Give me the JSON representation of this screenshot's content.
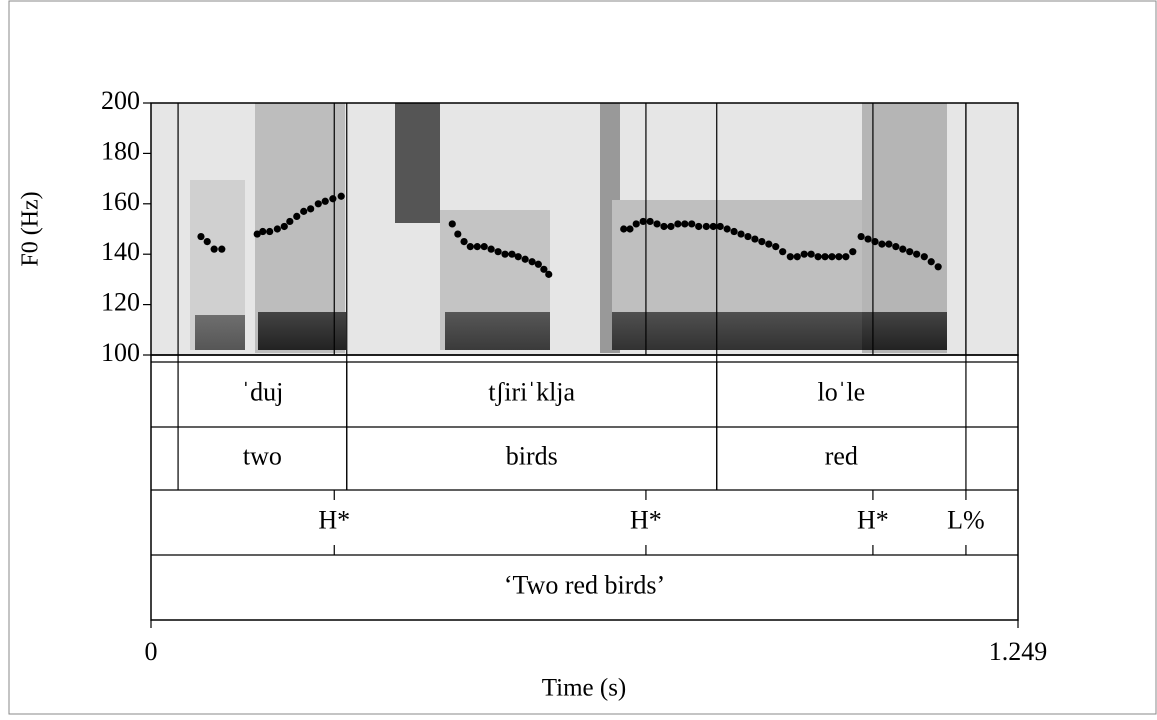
{
  "chart_data": {
    "type": "scatter",
    "y_label": "F0 (Hz)",
    "x_label": "Time (s)",
    "xlim": [
      0,
      1.249
    ],
    "xticks": [
      0,
      1.249
    ],
    "ylim": [
      100,
      200
    ],
    "yticks": [
      100,
      120,
      140,
      160,
      180,
      200
    ],
    "color": "#000000",
    "x": [
      0.072,
      0.081,
      0.091,
      0.102,
      0.153,
      0.161,
      0.171,
      0.182,
      0.192,
      0.2,
      0.21,
      0.22,
      0.23,
      0.241,
      0.251,
      0.262,
      0.274,
      0.434,
      0.442,
      0.451,
      0.46,
      0.47,
      0.48,
      0.49,
      0.5,
      0.51,
      0.52,
      0.529,
      0.539,
      0.549,
      0.558,
      0.566,
      0.573,
      0.681,
      0.69,
      0.699,
      0.709,
      0.719,
      0.729,
      0.739,
      0.749,
      0.759,
      0.769,
      0.779,
      0.789,
      0.8,
      0.81,
      0.82,
      0.83,
      0.84,
      0.85,
      0.86,
      0.87,
      0.88,
      0.89,
      0.9,
      0.91,
      0.921,
      0.931,
      0.941,
      0.951,
      0.961,
      0.971,
      0.981,
      0.991,
      1.001,
      1.011,
      1.023,
      1.033,
      1.043,
      1.053,
      1.063,
      1.073,
      1.083,
      1.093,
      1.103,
      1.114,
      1.124,
      1.134
    ],
    "values": [
      147,
      145,
      142,
      142,
      148,
      149,
      149,
      150,
      151,
      153,
      155,
      157,
      158,
      160,
      161,
      162,
      163,
      152,
      148,
      145,
      143,
      143,
      143,
      142,
      141,
      140,
      140,
      139,
      138,
      137,
      136,
      134,
      132,
      150,
      150,
      152,
      153,
      153,
      152,
      151,
      151,
      152,
      152,
      152,
      151,
      151,
      151,
      151,
      150,
      149,
      148,
      147,
      146,
      145,
      144,
      143,
      141,
      139,
      139,
      140,
      140,
      139,
      139,
      139,
      139,
      139,
      141,
      147,
      146,
      145,
      144,
      144,
      143,
      142,
      141,
      140,
      139,
      137,
      135
    ],
    "tiers": [
      {
        "intervals": [
          {
            "start": 0.039,
            "end": 0.282,
            "label": "ˈduj"
          },
          {
            "start": 0.282,
            "end": 0.815,
            "label": "tʃiriˈklja"
          },
          {
            "start": 0.815,
            "end": 1.174,
            "label": "loˈle"
          }
        ]
      },
      {
        "intervals": [
          {
            "start": 0.039,
            "end": 0.282,
            "label": "two"
          },
          {
            "start": 0.282,
            "end": 0.815,
            "label": "birds"
          },
          {
            "start": 0.815,
            "end": 1.174,
            "label": "red"
          }
        ]
      },
      {
        "points": [
          {
            "time": 0.264,
            "label": "H*"
          },
          {
            "time": 0.713,
            "label": "H*"
          },
          {
            "time": 1.04,
            "label": "H*"
          },
          {
            "time": 1.174,
            "label": "L%"
          }
        ]
      },
      {
        "intervals": [
          {
            "start": 0,
            "end": 1.249,
            "label": "‘Two red birds’"
          }
        ]
      }
    ]
  }
}
